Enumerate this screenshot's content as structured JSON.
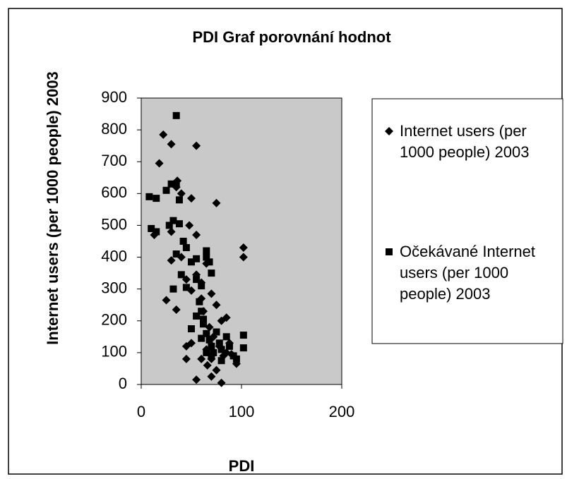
{
  "chart_data": {
    "type": "scatter",
    "title": "PDI Graf porovnání hodnot",
    "x_label": "PDI",
    "y_label": "Internet users (per 1000 people) 2003",
    "xlim": [
      0,
      200
    ],
    "xticks": [
      0,
      100,
      200
    ],
    "ylim": [
      0,
      900
    ],
    "yticks": [
      0,
      100,
      200,
      300,
      400,
      500,
      600,
      700,
      800,
      900
    ],
    "legend": "right",
    "series": [
      {
        "name": "Internet users (per 1000 people) 2003",
        "color": "#000000",
        "marker": "diamond",
        "x": [
          13,
          18,
          22,
          30,
          55,
          75,
          40,
          35,
          30,
          50,
          48,
          55,
          25,
          30,
          35,
          40,
          45,
          50,
          55,
          60,
          65,
          45,
          50,
          45,
          55,
          60,
          65,
          70,
          75,
          80,
          85,
          90,
          95,
          70,
          75,
          80,
          85,
          102,
          102,
          60,
          62,
          68,
          72,
          78,
          82,
          88,
          66,
          70,
          36
        ],
        "values": [
          470,
          695,
          785,
          755,
          750,
          570,
          600,
          620,
          480,
          585,
          500,
          470,
          265,
          390,
          235,
          400,
          330,
          295,
          345,
          320,
          380,
          120,
          130,
          80,
          15,
          80,
          110,
          285,
          250,
          200,
          210,
          95,
          65,
          25,
          45,
          5,
          100,
          430,
          400,
          270,
          230,
          180,
          150,
          120,
          90,
          130,
          60,
          80,
          640
        ]
      },
      {
        "name": "Očekávané Internet users (per 1000 people) 2003",
        "color": "#000000",
        "marker": "square",
        "x": [
          8,
          15,
          25,
          30,
          35,
          35,
          38,
          10,
          15,
          28,
          32,
          38,
          42,
          45,
          35,
          40,
          45,
          32,
          50,
          55,
          55,
          60,
          65,
          65,
          68,
          70,
          60,
          55,
          50,
          62,
          65,
          68,
          70,
          72,
          75,
          78,
          80,
          85,
          88,
          92,
          95,
          102,
          102,
          60,
          65,
          70,
          58,
          62,
          80
        ],
        "values": [
          590,
          585,
          610,
          630,
          845,
          630,
          580,
          490,
          480,
          500,
          515,
          505,
          450,
          430,
          410,
          345,
          305,
          300,
          385,
          395,
          330,
          310,
          420,
          400,
          385,
          350,
          230,
          215,
          175,
          190,
          160,
          140,
          120,
          100,
          165,
          130,
          110,
          150,
          120,
          90,
          80,
          155,
          115,
          145,
          100,
          90,
          260,
          205,
          75
        ]
      }
    ]
  }
}
